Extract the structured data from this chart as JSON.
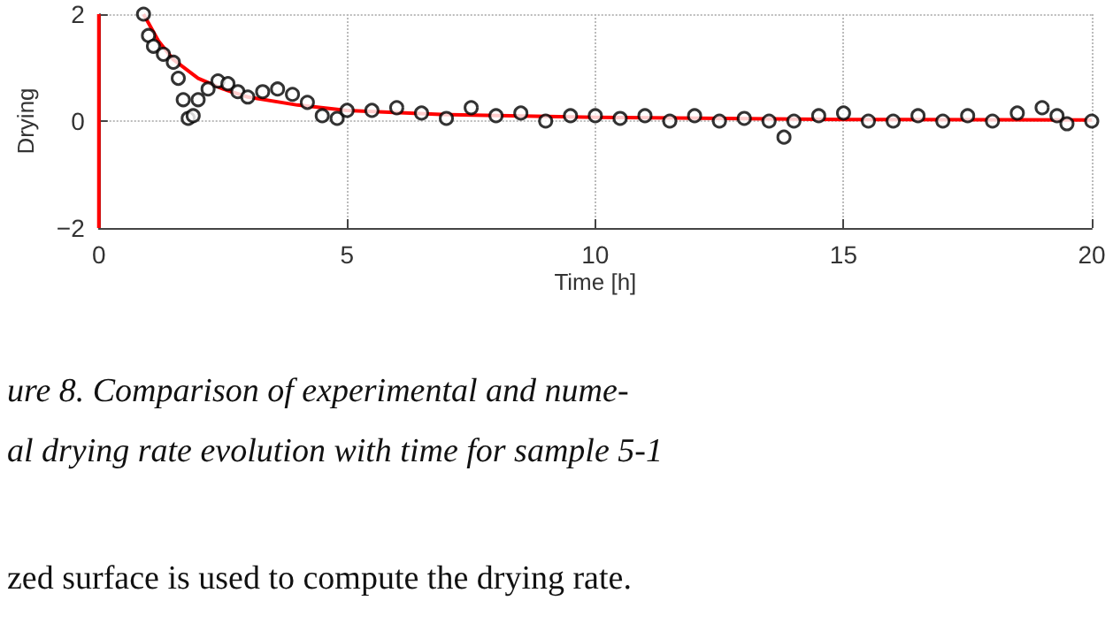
{
  "chart_data": {
    "type": "line",
    "xlabel": "Time [h]",
    "ylabel": "Drying",
    "xlim": [
      0,
      20
    ],
    "xticks": [
      0,
      5,
      10,
      15,
      20
    ],
    "ylim": [
      -2,
      2
    ],
    "yticks": [
      -2,
      0,
      2
    ],
    "grid": true,
    "series": [
      {
        "type": "scatter",
        "color": "#000000",
        "marker": "circle",
        "x": [
          0.9,
          1.0,
          1.1,
          1.3,
          1.5,
          1.6,
          1.7,
          1.8,
          1.9,
          2.0,
          2.2,
          2.4,
          2.6,
          2.8,
          3.0,
          3.3,
          3.6,
          3.9,
          4.2,
          4.5,
          4.8,
          5.0,
          5.5,
          6.0,
          6.5,
          7.0,
          7.5,
          8.0,
          8.5,
          9.0,
          9.5,
          10.0,
          10.5,
          11.0,
          11.5,
          12.0,
          12.5,
          13.0,
          13.5,
          13.8,
          14.0,
          14.5,
          15.0,
          15.5,
          16.0,
          16.5,
          17.0,
          17.5,
          18.0,
          18.5,
          19.0,
          19.3,
          19.5,
          20.0
        ],
        "values": [
          2.0,
          1.6,
          1.4,
          1.25,
          1.1,
          0.8,
          0.4,
          0.05,
          0.1,
          0.4,
          0.6,
          0.75,
          0.7,
          0.55,
          0.45,
          0.55,
          0.6,
          0.5,
          0.35,
          0.1,
          0.05,
          0.2,
          0.2,
          0.25,
          0.15,
          0.05,
          0.25,
          0.1,
          0.15,
          0.0,
          0.1,
          0.1,
          0.05,
          0.1,
          0.0,
          0.1,
          0.0,
          0.05,
          0.0,
          -0.3,
          0.0,
          0.1,
          0.15,
          0.0,
          0.0,
          0.1,
          0.0,
          0.1,
          0.0,
          0.15,
          0.25,
          0.1,
          -0.05,
          0.0
        ]
      },
      {
        "color": "#ff0000",
        "line_style": "solid",
        "marker": "none",
        "x": [
          0,
          0,
          0,
          0,
          0,
          0.5,
          0.9,
          1.2,
          1.5,
          2,
          2.5,
          3,
          4,
          5,
          7,
          10,
          15,
          20
        ],
        "values": [
          -2,
          -1,
          0,
          1,
          2,
          null,
          2,
          1.5,
          1.15,
          0.8,
          0.6,
          0.45,
          0.3,
          0.2,
          0.12,
          0.07,
          0.03,
          0.02
        ]
      }
    ],
    "annotations": [
      "ure 8. Comparison of experimental and nume-",
      "al drying rate evolution with time for sample 5-1",
      "zed surface is used to compute the drying rate."
    ]
  }
}
